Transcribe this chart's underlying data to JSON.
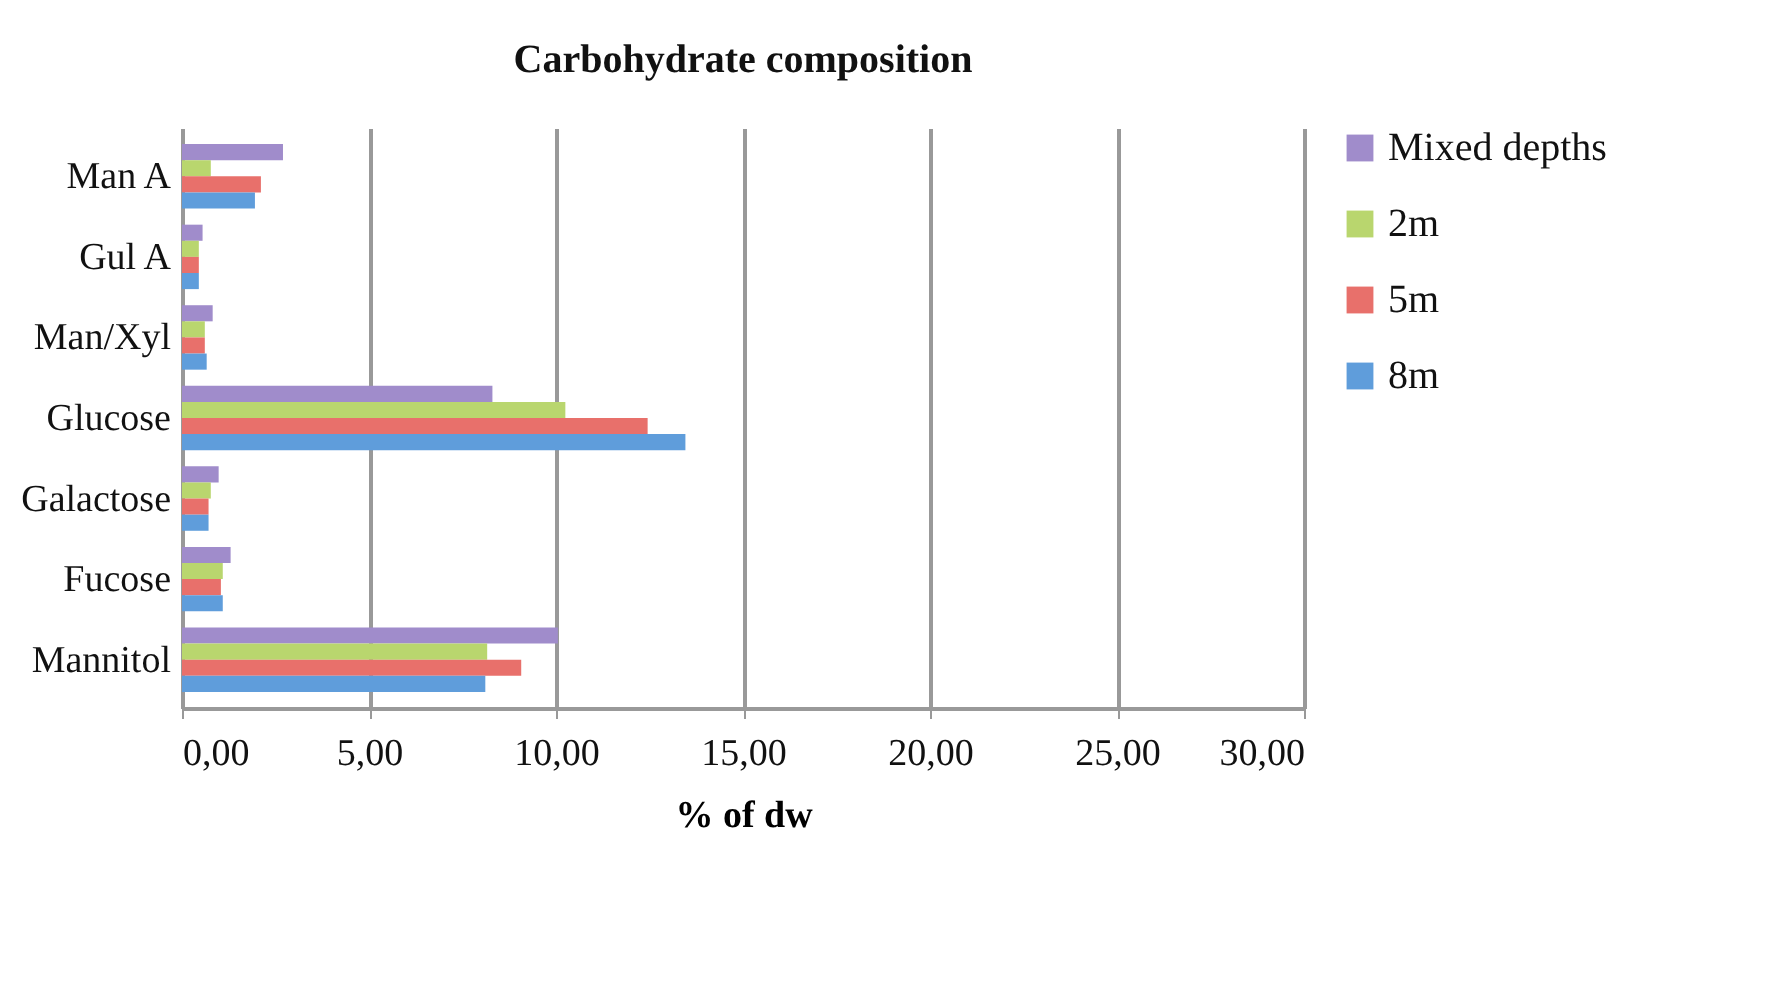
{
  "chart_data": {
    "type": "bar",
    "orientation": "horizontal",
    "title": "Carbohydrate composition",
    "xlabel": "% of dw",
    "categories": [
      "Man A",
      "Gul A",
      "Man/Xyl",
      "Glucose",
      "Galactose",
      "Fucose",
      "Mannitol"
    ],
    "series": [
      {
        "name": "Mixed depths",
        "color": "#a08ccb",
        "values": [
          2.7,
          0.55,
          0.82,
          8.3,
          0.98,
          1.3,
          10.05
        ]
      },
      {
        "name": "2m",
        "color": "#b9d66e",
        "values": [
          0.77,
          0.45,
          0.61,
          10.25,
          0.77,
          1.09,
          8.16
        ]
      },
      {
        "name": "5m",
        "color": "#e8706b",
        "values": [
          2.11,
          0.45,
          0.61,
          12.45,
          0.71,
          1.04,
          9.07
        ]
      },
      {
        "name": "8m",
        "color": "#5f9ddb",
        "values": [
          1.95,
          0.45,
          0.66,
          13.46,
          0.71,
          1.09,
          8.11
        ]
      }
    ],
    "xlim": [
      0,
      30
    ],
    "xticks": [
      {
        "value": 0,
        "label": "0,00"
      },
      {
        "value": 5,
        "label": "5,00"
      },
      {
        "value": 10,
        "label": "10,00"
      },
      {
        "value": 15,
        "label": "15,00"
      },
      {
        "value": 20,
        "label": "20,00"
      },
      {
        "value": 25,
        "label": "25,00"
      },
      {
        "value": 30,
        "label": "30,00"
      }
    ],
    "grid": "x",
    "legend": "right"
  }
}
